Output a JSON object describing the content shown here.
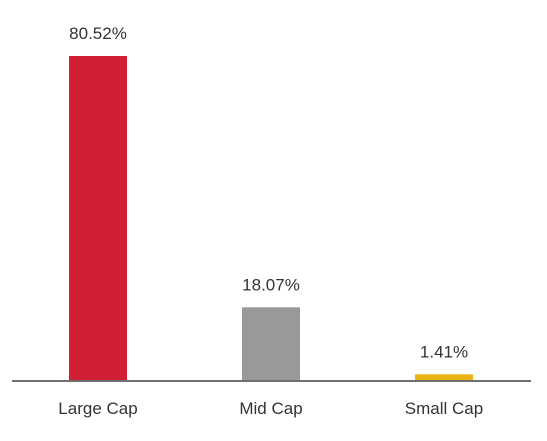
{
  "chart_data": {
    "type": "bar",
    "title": "",
    "xlabel": "",
    "ylabel": "",
    "categories": [
      "Large Cap",
      "Mid Cap",
      "Small Cap"
    ],
    "values": [
      80.52,
      18.07,
      1.41
    ],
    "value_labels": [
      "80.52%",
      "18.07%",
      "1.41%"
    ],
    "colors": [
      "#d01f35",
      "#999999",
      "#e8b514"
    ],
    "ylim": [
      0,
      100
    ],
    "grid": false,
    "legend": "none"
  }
}
